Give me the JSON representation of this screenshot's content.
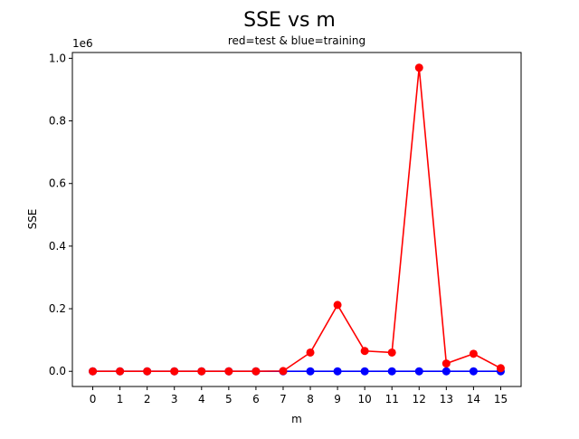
{
  "chart_data": {
    "type": "line",
    "title": "SSE vs m",
    "subtitle": "red=test & blue=training",
    "xlabel": "m",
    "ylabel": "SSE",
    "y_offset_label": "1e6",
    "x": [
      0,
      1,
      2,
      3,
      4,
      5,
      6,
      7,
      8,
      9,
      10,
      11,
      12,
      13,
      14,
      15
    ],
    "x_tick_labels": [
      "0",
      "1",
      "2",
      "3",
      "4",
      "5",
      "6",
      "7",
      "8",
      "9",
      "10",
      "11",
      "12",
      "13",
      "14",
      "15"
    ],
    "y_ticks": [
      0,
      0.2,
      0.4,
      0.6,
      0.8,
      1.0
    ],
    "y_tick_labels": [
      "0.0",
      "0.2",
      "0.4",
      "0.6",
      "0.8",
      "1.0"
    ],
    "y_scale": 1000000,
    "xlim": [
      -0.75,
      15.75
    ],
    "ylim": [
      -0.0485,
      1.0185
    ],
    "series": [
      {
        "name": "training",
        "color": "#0000ff",
        "values": [
          0,
          0,
          0,
          0,
          0,
          0,
          0,
          0,
          0,
          0,
          0,
          0,
          0,
          0,
          0,
          0
        ]
      },
      {
        "name": "test",
        "color": "#ff0000",
        "values": [
          0,
          0,
          0,
          0,
          0,
          0,
          0,
          0.001,
          0.06,
          0.212,
          0.065,
          0.06,
          0.97,
          0.025,
          0.056,
          0.01
        ]
      }
    ],
    "grid": false,
    "legend": "none"
  }
}
